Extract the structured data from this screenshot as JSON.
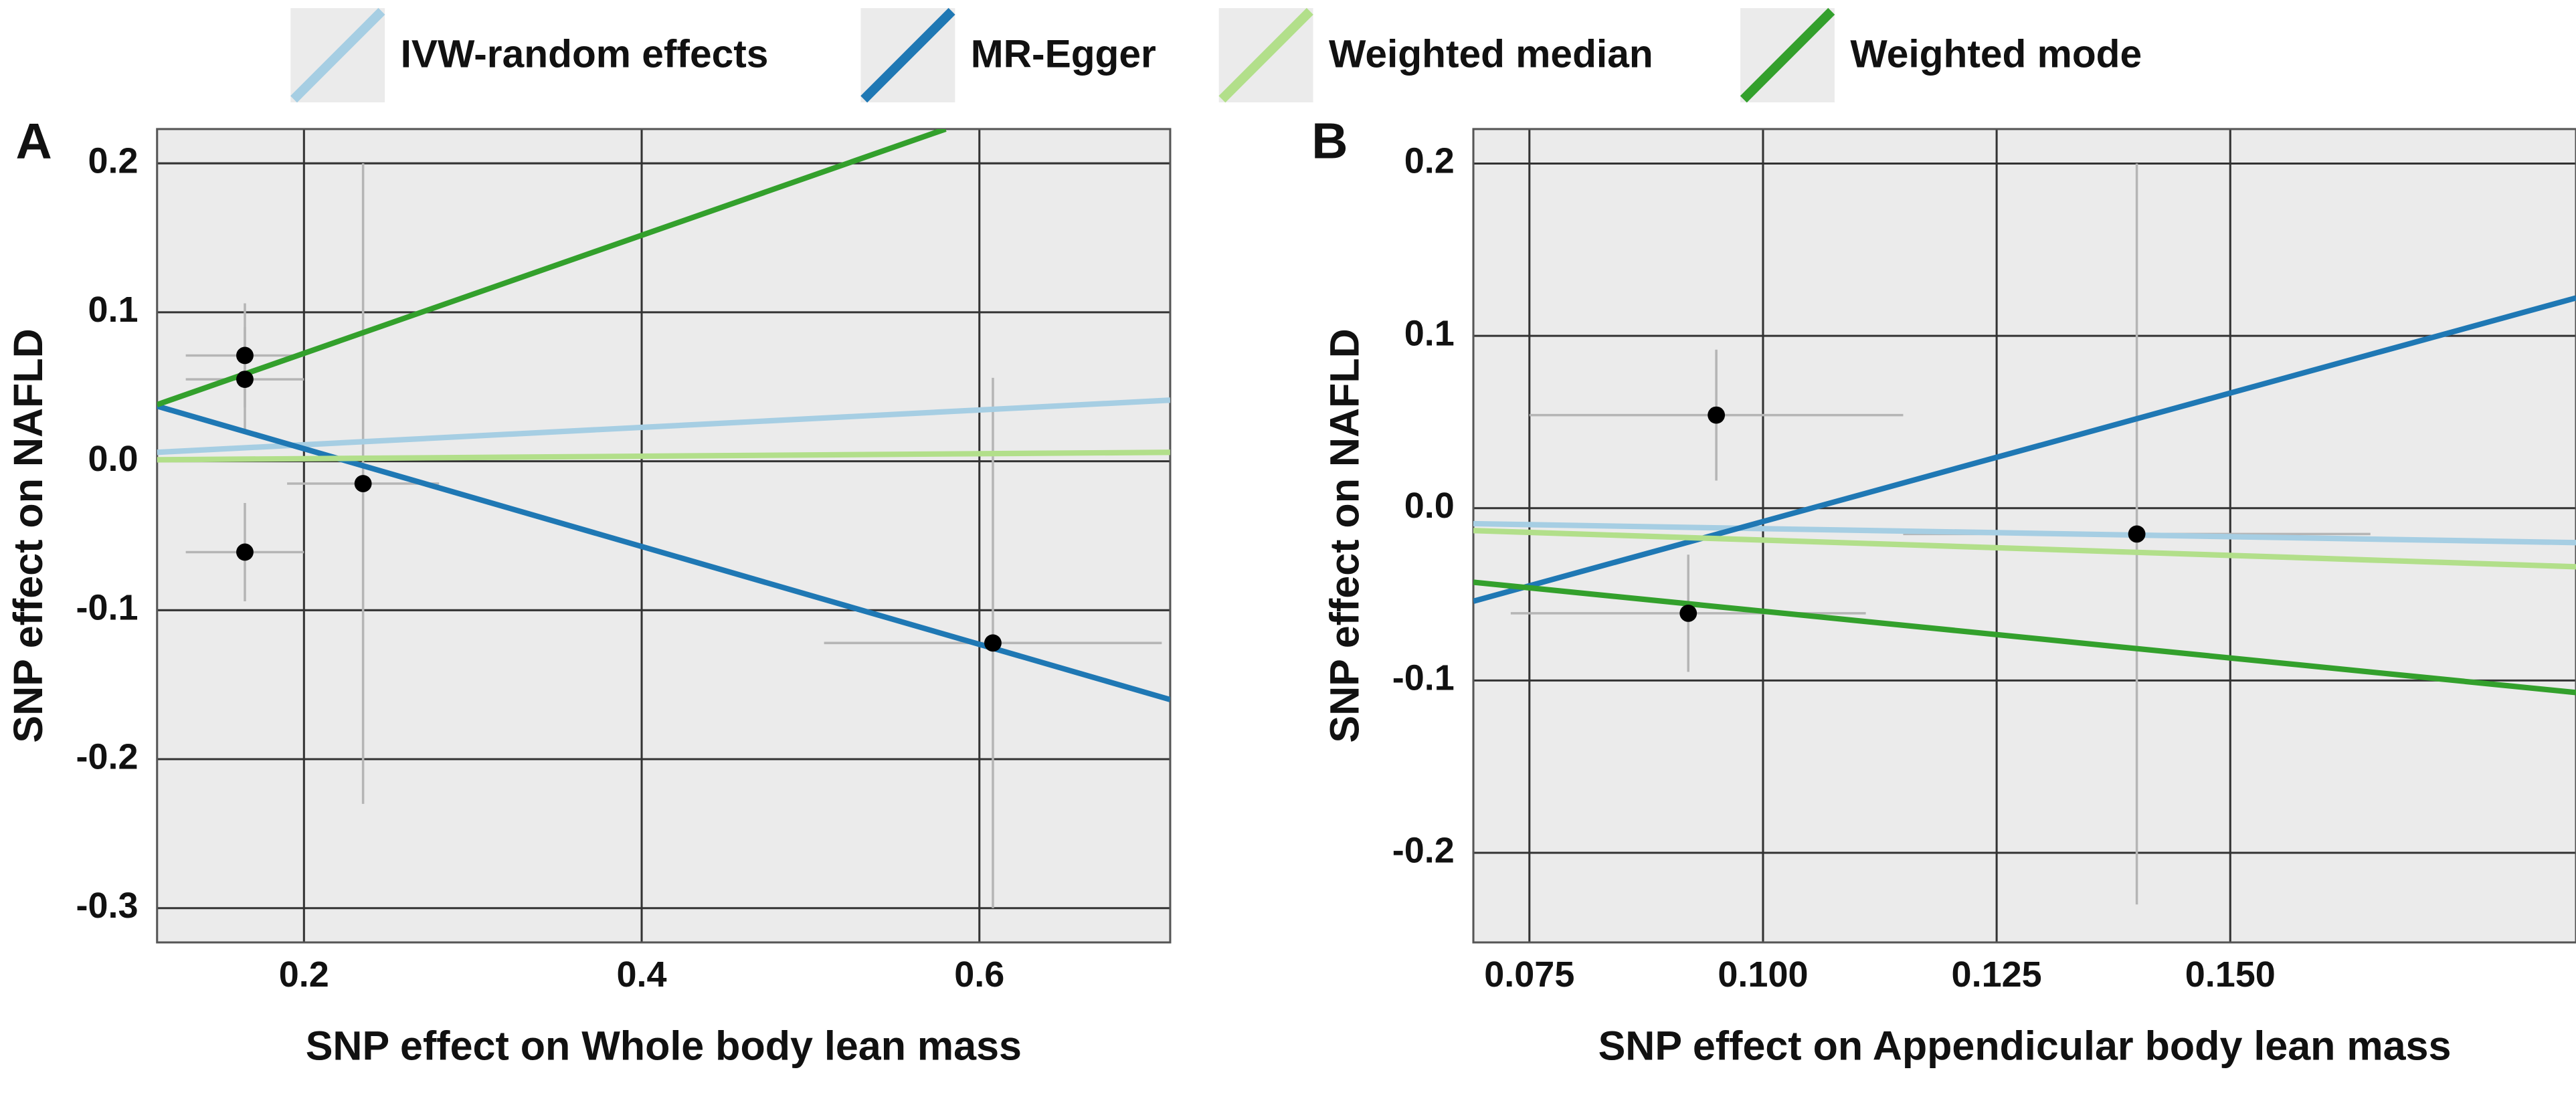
{
  "chart_data": [
    {
      "type": "scatter",
      "panel_label": "A",
      "x_label": "SNP effect on Whole body lean mass",
      "y_label": "SNP effect on NAFLD",
      "xlim": [
        0.113,
        0.713
      ],
      "ylim": [
        -0.323,
        0.223
      ],
      "xticks": [
        0.2,
        0.4,
        0.6
      ],
      "yticks": [
        0.2,
        0.1,
        {
          "value": 0,
          "label": "0.0"
        },
        -0.1,
        -0.2,
        -0.3
      ],
      "grid": true,
      "point_color": "#000000",
      "x": [
        0.165,
        0.165,
        0.165,
        0.235,
        0.608
      ],
      "values": [
        0.071,
        0.055,
        -0.061,
        -0.015,
        -0.122
      ],
      "xerr": [
        0.035,
        0.035,
        0.035,
        0.045,
        0.1
      ],
      "yerr": [
        0.035,
        0.035,
        0.033,
        0.215,
        0.178
      ],
      "series": [
        {
          "name": "IVW-random effects",
          "color": "#a6cee3",
          "x": [
            0.113,
            0.713
          ],
          "values": [
            0.006,
            0.041
          ]
        },
        {
          "name": "MR-Egger",
          "color": "#1f78b4",
          "x": [
            0.113,
            0.713
          ],
          "values": [
            0.037,
            -0.16
          ]
        },
        {
          "name": "Weighted median",
          "color": "#b2df8a",
          "x": [
            0.113,
            0.713
          ],
          "values": [
            0.001,
            0.006
          ]
        },
        {
          "name": "Weighted mode",
          "color": "#33a02c",
          "x": [
            0.113,
            0.58
          ],
          "values": [
            0.038,
            0.223
          ]
        }
      ]
    },
    {
      "type": "scatter",
      "panel_label": "B",
      "x_label": "SNP effect on Appendicular body lean mass",
      "y_label": "SNP effect on NAFLD",
      "xlim": [
        0.069,
        0.187
      ],
      "ylim": [
        -0.252,
        0.22
      ],
      "xticks": [
        {
          "value": 0.075,
          "label": "0.075"
        },
        {
          "value": 0.1,
          "label": "0.100"
        },
        {
          "value": 0.125,
          "label": "0.125"
        },
        {
          "value": 0.15,
          "label": "0.150"
        }
      ],
      "yticks": [
        0.2,
        0.1,
        {
          "value": 0,
          "label": "0.0"
        },
        -0.1,
        -0.2
      ],
      "grid": true,
      "point_color": "#000000",
      "x": [
        0.095,
        0.092,
        0.14
      ],
      "values": [
        0.054,
        -0.061,
        -0.015
      ],
      "xerr": [
        0.02,
        0.019,
        0.025
      ],
      "yerr": [
        0.038,
        0.034,
        0.215
      ],
      "series": [
        {
          "name": "IVW-random effects",
          "color": "#a6cee3",
          "x": [
            0.069,
            0.187
          ],
          "values": [
            -0.009,
            -0.02
          ]
        },
        {
          "name": "MR-Egger",
          "color": "#1f78b4",
          "x": [
            0.069,
            0.187
          ],
          "values": [
            -0.054,
            0.122
          ]
        },
        {
          "name": "Weighted median",
          "color": "#b2df8a",
          "x": [
            0.069,
            0.187
          ],
          "values": [
            -0.013,
            -0.034
          ]
        },
        {
          "name": "Weighted mode",
          "color": "#33a02c",
          "x": [
            0.069,
            0.187
          ],
          "values": [
            -0.043,
            -0.107
          ]
        }
      ]
    }
  ]
}
